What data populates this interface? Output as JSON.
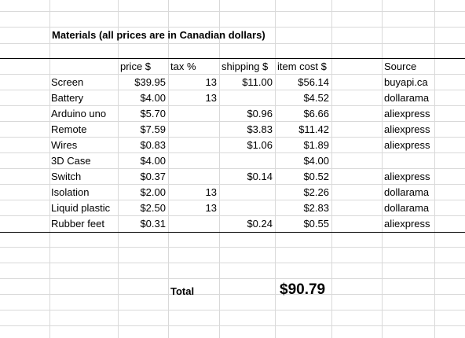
{
  "sheet": {
    "title": "Materials (all prices are in Canadian dollars)",
    "headers": {
      "price": "price $",
      "tax": "tax %",
      "shipping": "shipping $",
      "item_cost": "item cost $",
      "source": "Source"
    },
    "rows": [
      {
        "item": "Screen",
        "price": "$39.95",
        "tax": "13",
        "shipping": "$11.00",
        "cost": "$56.14",
        "source": "buyapi.ca"
      },
      {
        "item": "Battery",
        "price": "$4.00",
        "tax": "13",
        "shipping": "",
        "cost": "$4.52",
        "source": "dollarama"
      },
      {
        "item": "Arduino uno",
        "price": "$5.70",
        "tax": "",
        "shipping": "$0.96",
        "cost": "$6.66",
        "source": "aliexpress"
      },
      {
        "item": "Remote",
        "price": "$7.59",
        "tax": "",
        "shipping": "$3.83",
        "cost": "$11.42",
        "source": "aliexpress"
      },
      {
        "item": "Wires",
        "price": "$0.83",
        "tax": "",
        "shipping": "$1.06",
        "cost": "$1.89",
        "source": "aliexpress"
      },
      {
        "item": "3D Case",
        "price": "$4.00",
        "tax": "",
        "shipping": "",
        "cost": "$4.00",
        "source": ""
      },
      {
        "item": "Switch",
        "price": "$0.37",
        "tax": "",
        "shipping": "$0.14",
        "cost": "$0.52",
        "source": "aliexpress"
      },
      {
        "item": "Isolation",
        "price": "$2.00",
        "tax": "13",
        "shipping": "",
        "cost": "$2.26",
        "source": "dollarama"
      },
      {
        "item": "Liquid plastic",
        "price": "$2.50",
        "tax": "13",
        "shipping": "",
        "cost": "$2.83",
        "source": "dollarama"
      },
      {
        "item": "Rubber feet",
        "price": "$0.31",
        "tax": "",
        "shipping": "$0.24",
        "cost": "$0.55",
        "source": "aliexpress"
      }
    ],
    "total_label": "Total",
    "total_value": "$90.79"
  }
}
